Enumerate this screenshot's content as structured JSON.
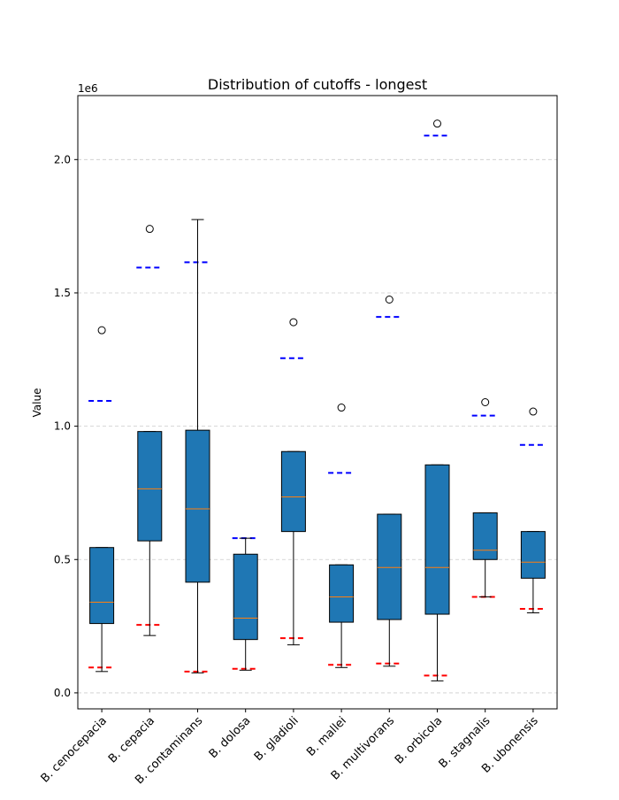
{
  "chart_data": {
    "type": "box",
    "title": "Distribution of cutoffs - longest",
    "xlabel": "",
    "ylabel": "Value",
    "y_offset_label": "1e6",
    "ylim": [
      -60000,
      2240000
    ],
    "yticks": [
      0,
      500000,
      1000000,
      1500000,
      2000000
    ],
    "ytick_labels": [
      "0.0",
      "0.5",
      "1.0",
      "1.5",
      "2.0"
    ],
    "grid": "y",
    "box_color": "#1f77b4",
    "median_color": "#ff7f0e",
    "upper_line_color": "#0000ff",
    "lower_line_color": "#ff0000",
    "categories": [
      "B. cenocepacia",
      "B. cepacia",
      "B. contaminans",
      "B. dolosa",
      "B. gladioli",
      "B. mallei",
      "B. multivorans",
      "B. orbicola",
      "B. stagnalis",
      "B. ubonensis"
    ],
    "boxes": [
      {
        "whisker_low": 80000,
        "q1": 260000,
        "median": 340000,
        "q3": 545000,
        "whisker_high": 545000,
        "outliers": [
          1360000
        ],
        "upper_line": 1095000,
        "lower_line": 95000
      },
      {
        "whisker_low": 215000,
        "q1": 570000,
        "median": 765000,
        "q3": 980000,
        "whisker_high": 980000,
        "outliers": [
          1740000
        ],
        "upper_line": 1595000,
        "lower_line": 255000
      },
      {
        "whisker_low": 75000,
        "q1": 415000,
        "median": 690000,
        "q3": 985000,
        "whisker_high": 1775000,
        "outliers": [],
        "upper_line": 1615000,
        "lower_line": 80000
      },
      {
        "whisker_low": 85000,
        "q1": 200000,
        "median": 280000,
        "q3": 520000,
        "whisker_high": 580000,
        "outliers": [],
        "upper_line": 580000,
        "lower_line": 90000
      },
      {
        "whisker_low": 180000,
        "q1": 605000,
        "median": 735000,
        "q3": 905000,
        "whisker_high": 905000,
        "outliers": [
          1390000
        ],
        "upper_line": 1255000,
        "lower_line": 205000
      },
      {
        "whisker_low": 95000,
        "q1": 265000,
        "median": 360000,
        "q3": 480000,
        "whisker_high": 480000,
        "outliers": [
          1070000
        ],
        "upper_line": 825000,
        "lower_line": 105000
      },
      {
        "whisker_low": 100000,
        "q1": 275000,
        "median": 470000,
        "q3": 670000,
        "whisker_high": 670000,
        "outliers": [
          1475000
        ],
        "upper_line": 1410000,
        "lower_line": 110000
      },
      {
        "whisker_low": 45000,
        "q1": 295000,
        "median": 470000,
        "q3": 855000,
        "whisker_high": 855000,
        "outliers": [
          2135000
        ],
        "upper_line": 2090000,
        "lower_line": 65000
      },
      {
        "whisker_low": 360000,
        "q1": 500000,
        "median": 535000,
        "q3": 675000,
        "whisker_high": 675000,
        "outliers": [
          1090000
        ],
        "upper_line": 1040000,
        "lower_line": 360000
      },
      {
        "whisker_low": 300000,
        "q1": 430000,
        "median": 490000,
        "q3": 605000,
        "whisker_high": 605000,
        "outliers": [
          1055000
        ],
        "upper_line": 930000,
        "lower_line": 315000
      }
    ]
  }
}
